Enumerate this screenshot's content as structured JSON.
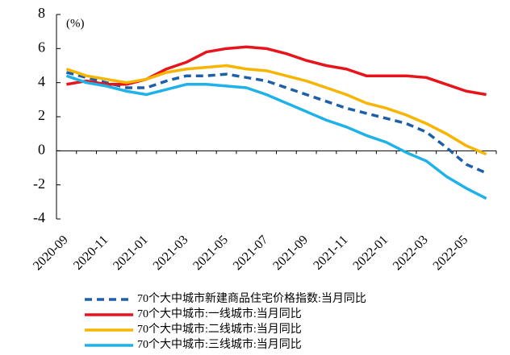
{
  "chart_data": {
    "type": "line",
    "annotations": [
      "(%)"
    ],
    "categories": [
      "2020-09",
      null,
      "2020-11",
      null,
      "2021-01",
      null,
      "2021-03",
      null,
      "2021-05",
      null,
      "2021-07",
      null,
      "2021-09",
      null,
      "2021-11",
      null,
      "2022-01",
      null,
      "2022-03",
      null,
      "2022-05",
      null
    ],
    "series": [
      {
        "name": "70个大中城市新建商品住宅价格指数:当月同比",
        "color": "#1f5fa8",
        "dashed": true,
        "values": [
          4.6,
          4.3,
          4.0,
          3.7,
          3.7,
          4.1,
          4.4,
          4.4,
          4.5,
          4.3,
          4.1,
          3.7,
          3.3,
          2.9,
          2.5,
          2.2,
          1.9,
          1.6,
          1.1,
          0.2,
          -0.8,
          -1.3
        ]
      },
      {
        "name": "70个大中城市:一线城市:当月同比",
        "color": "#e8141b",
        "dashed": false,
        "values": [
          3.9,
          4.1,
          3.9,
          3.9,
          4.2,
          4.8,
          5.2,
          5.8,
          6.0,
          6.1,
          6.0,
          5.7,
          5.3,
          5.0,
          4.8,
          4.4,
          4.4,
          4.4,
          4.3,
          3.9,
          3.5,
          3.3
        ]
      },
      {
        "name": "70个大中城市:二线城市:当月同比",
        "color": "#f7b500",
        "dashed": false,
        "values": [
          4.8,
          4.4,
          4.2,
          4.0,
          4.2,
          4.6,
          4.8,
          4.9,
          5.0,
          4.8,
          4.7,
          4.4,
          4.1,
          3.7,
          3.3,
          2.8,
          2.5,
          2.1,
          1.6,
          1.0,
          0.3,
          -0.2
        ]
      },
      {
        "name": "70个大中城市:三线城市:当月同比",
        "color": "#1fb2e8",
        "dashed": false,
        "values": [
          4.4,
          4.0,
          3.8,
          3.5,
          3.3,
          3.6,
          3.9,
          3.9,
          3.8,
          3.7,
          3.3,
          2.8,
          2.3,
          1.8,
          1.4,
          0.9,
          0.5,
          -0.1,
          -0.6,
          -1.5,
          -2.2,
          -2.8
        ]
      }
    ],
    "ylim": [
      -4,
      8
    ],
    "yticks": [
      -4,
      -2,
      0,
      2,
      4,
      6,
      8
    ],
    "grid": false,
    "legend": "bottom"
  }
}
